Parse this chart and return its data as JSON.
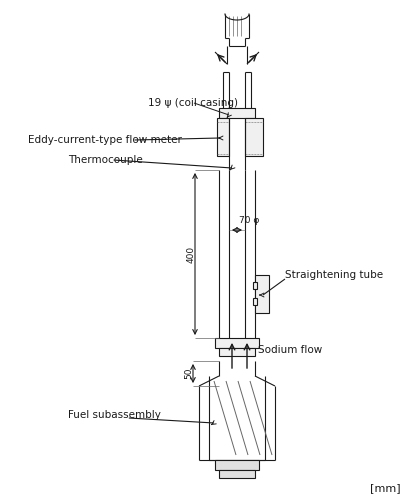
{
  "bg_color": "#ffffff",
  "line_color": "#1a1a1a",
  "gray_color": "#666666",
  "figure_size": [
    4.18,
    5.0
  ],
  "dpi": 100,
  "labels": {
    "coil_casing": "19 ψ (coil casing)",
    "eddy_current": "Eddy-current-type flow meter",
    "thermocouple": "Thermocouple",
    "straightening": "Straightening tube",
    "sodium_flow": "Sodium flow",
    "fuel_subassembly": "Fuel subassembly",
    "units": "[mm]",
    "dim_400": "400",
    "dim_50": "50",
    "dim_70": "70 φ"
  }
}
